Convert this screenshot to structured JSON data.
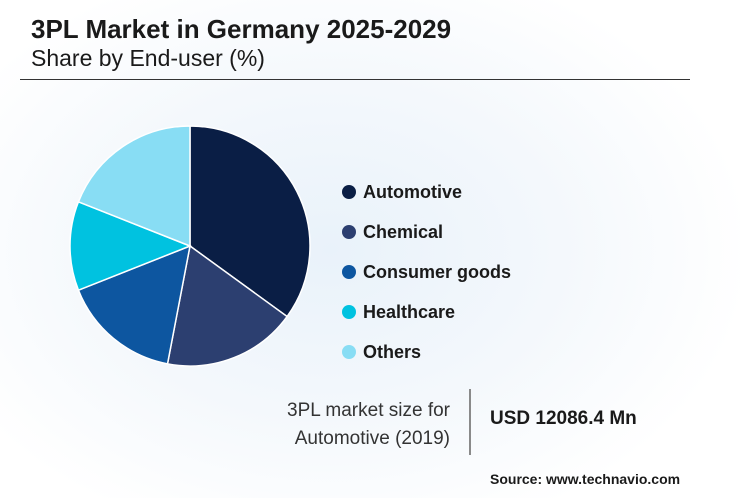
{
  "header": {
    "title": "3PL Market in Germany 2025-2029",
    "subtitle": "Share by End-user (%)"
  },
  "chart_data": {
    "type": "pie",
    "title": "3PL Market in Germany 2025-2029",
    "subtitle": "Share by End-user (%)",
    "categories": [
      "Automotive",
      "Chemical",
      "Consumer goods",
      "Healthcare",
      "Others"
    ],
    "values": [
      35,
      18,
      16,
      12,
      19
    ],
    "colors": [
      "#0a1e45",
      "#2c3f70",
      "#0d56a0",
      "#00c2e0",
      "#88ddf4"
    ],
    "legend_placement": "right"
  },
  "kpi": {
    "label_line1": "3PL market size for",
    "label_line2": "Automotive (2019)",
    "value": "USD 12086.4 Mn"
  },
  "footer": {
    "source": "Source: www.technavio.com"
  }
}
